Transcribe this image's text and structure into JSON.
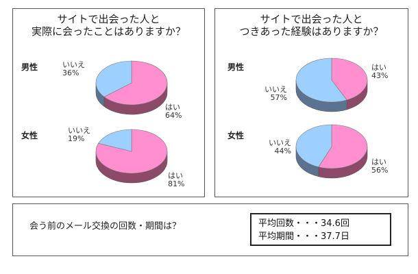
{
  "colors": {
    "yes": "#ff8fce",
    "yes_side": "#8d4a68",
    "no": "#9ed0ff",
    "no_side": "#5b7390"
  },
  "left_panel": {
    "title_line1": "サイトで出会った人と",
    "title_line2": "実際に会ったことはありますか？"
  },
  "right_panel": {
    "title_line1": "サイトで出会った人と",
    "title_line2": "つきあった経験はありますか？"
  },
  "chart_data": [
    {
      "type": "pie",
      "title": "サイトで出会った人と実際に会ったことはありますか？",
      "group": "男性",
      "slices": [
        {
          "label": "はい",
          "value": 64,
          "pct_text": "64%"
        },
        {
          "label": "いいえ",
          "value": 36,
          "pct_text": "36%"
        }
      ]
    },
    {
      "type": "pie",
      "title": "サイトで出会った人と実際に会ったことはありますか？",
      "group": "女性",
      "slices": [
        {
          "label": "はい",
          "value": 81,
          "pct_text": "81%"
        },
        {
          "label": "いいえ",
          "value": 19,
          "pct_text": "19%"
        }
      ]
    },
    {
      "type": "pie",
      "title": "サイトで出会った人とつきあった経験はありますか？",
      "group": "男性",
      "slices": [
        {
          "label": "はい",
          "value": 43,
          "pct_text": "43%"
        },
        {
          "label": "いいえ",
          "value": 57,
          "pct_text": "57%"
        }
      ]
    },
    {
      "type": "pie",
      "title": "サイトで出会った人とつきあった経験はありますか？",
      "group": "女性",
      "slices": [
        {
          "label": "はい",
          "value": 56,
          "pct_text": "56%"
        },
        {
          "label": "いいえ",
          "value": 44,
          "pct_text": "44%"
        }
      ]
    }
  ],
  "bottom_panel": {
    "question": "会う前のメール交換の回数・期間は？",
    "stat1": "平均回数・・・34.6回",
    "stat2": "平均期間・・・37.7日"
  }
}
